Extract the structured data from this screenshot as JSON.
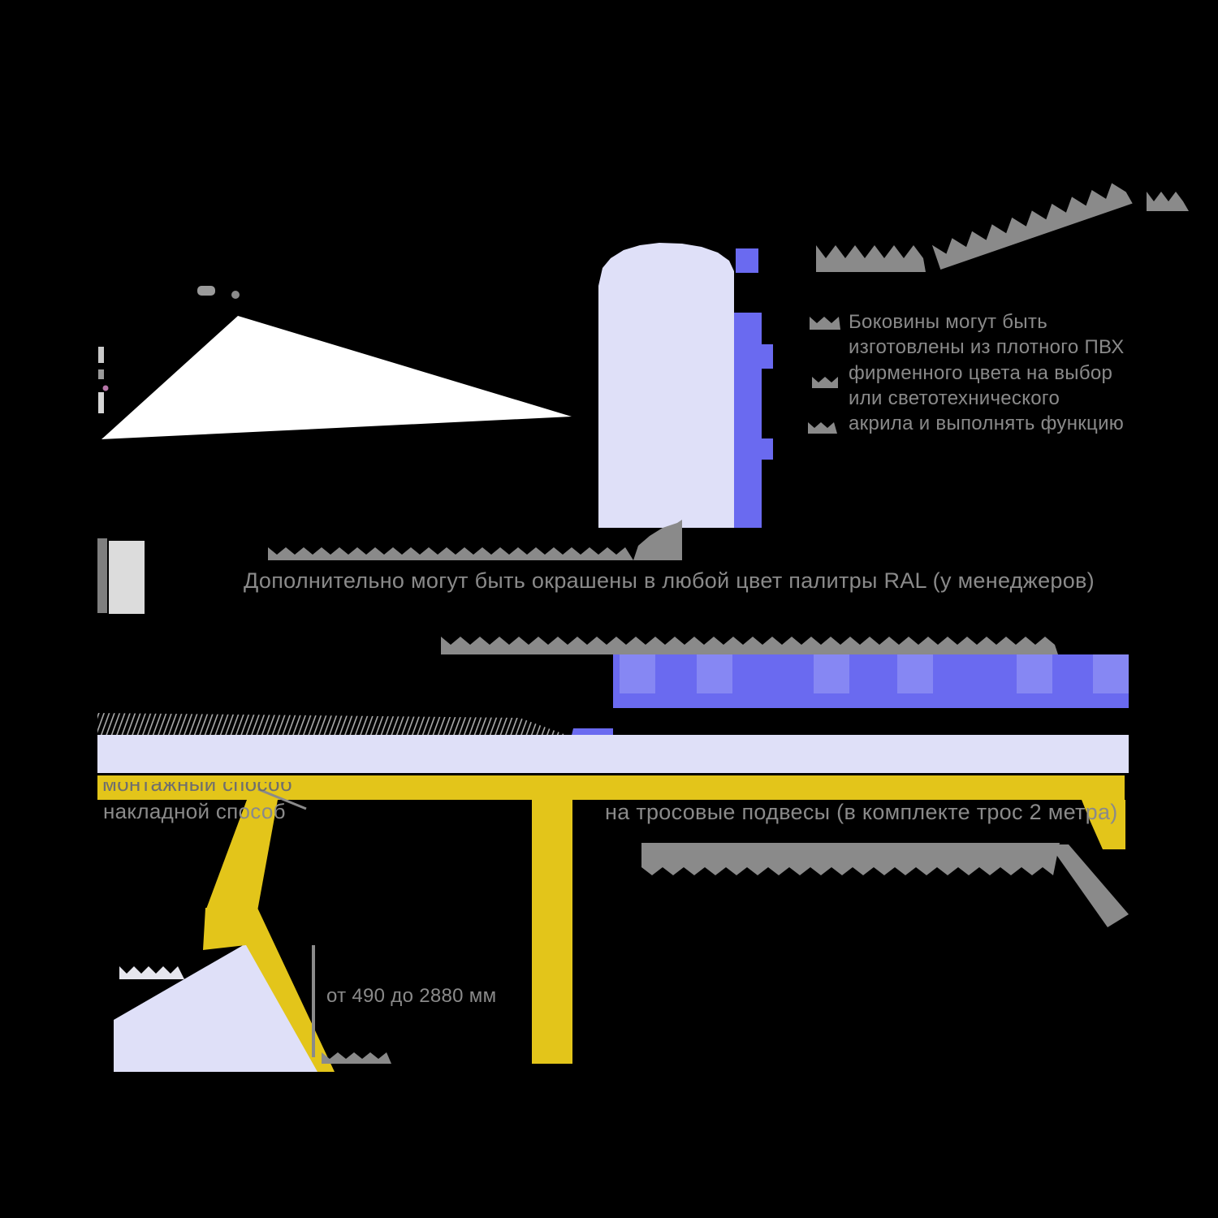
{
  "canvas": {
    "background": "#000000"
  },
  "colors": {
    "yellow": "#e3c51a",
    "blue": "#6a6af0",
    "blue_light": "#8687f3",
    "lavender": "#dfe0f8",
    "gray_text": "#8a8a8a",
    "white": "#ffffff"
  },
  "annotations": {
    "panel_note": {
      "lines": [
        "Боковины могут быть",
        "изготовлены из плотного ПВХ",
        "фирменного цвета на выбор",
        "или светотехнического",
        "акрила и выполнять функцию"
      ]
    },
    "paint_note": "Дополнительно могут быть окрашены в любой цвет палитры RAL (у менеджеров)",
    "mounting_method": {
      "obscured_line": "монтажный способ",
      "visible_line": "накладной способ"
    },
    "suspension_note": "на тросовые подвесы (в комплекте трос 2 метра)",
    "height_range": "от 490 до 2880 мм"
  }
}
